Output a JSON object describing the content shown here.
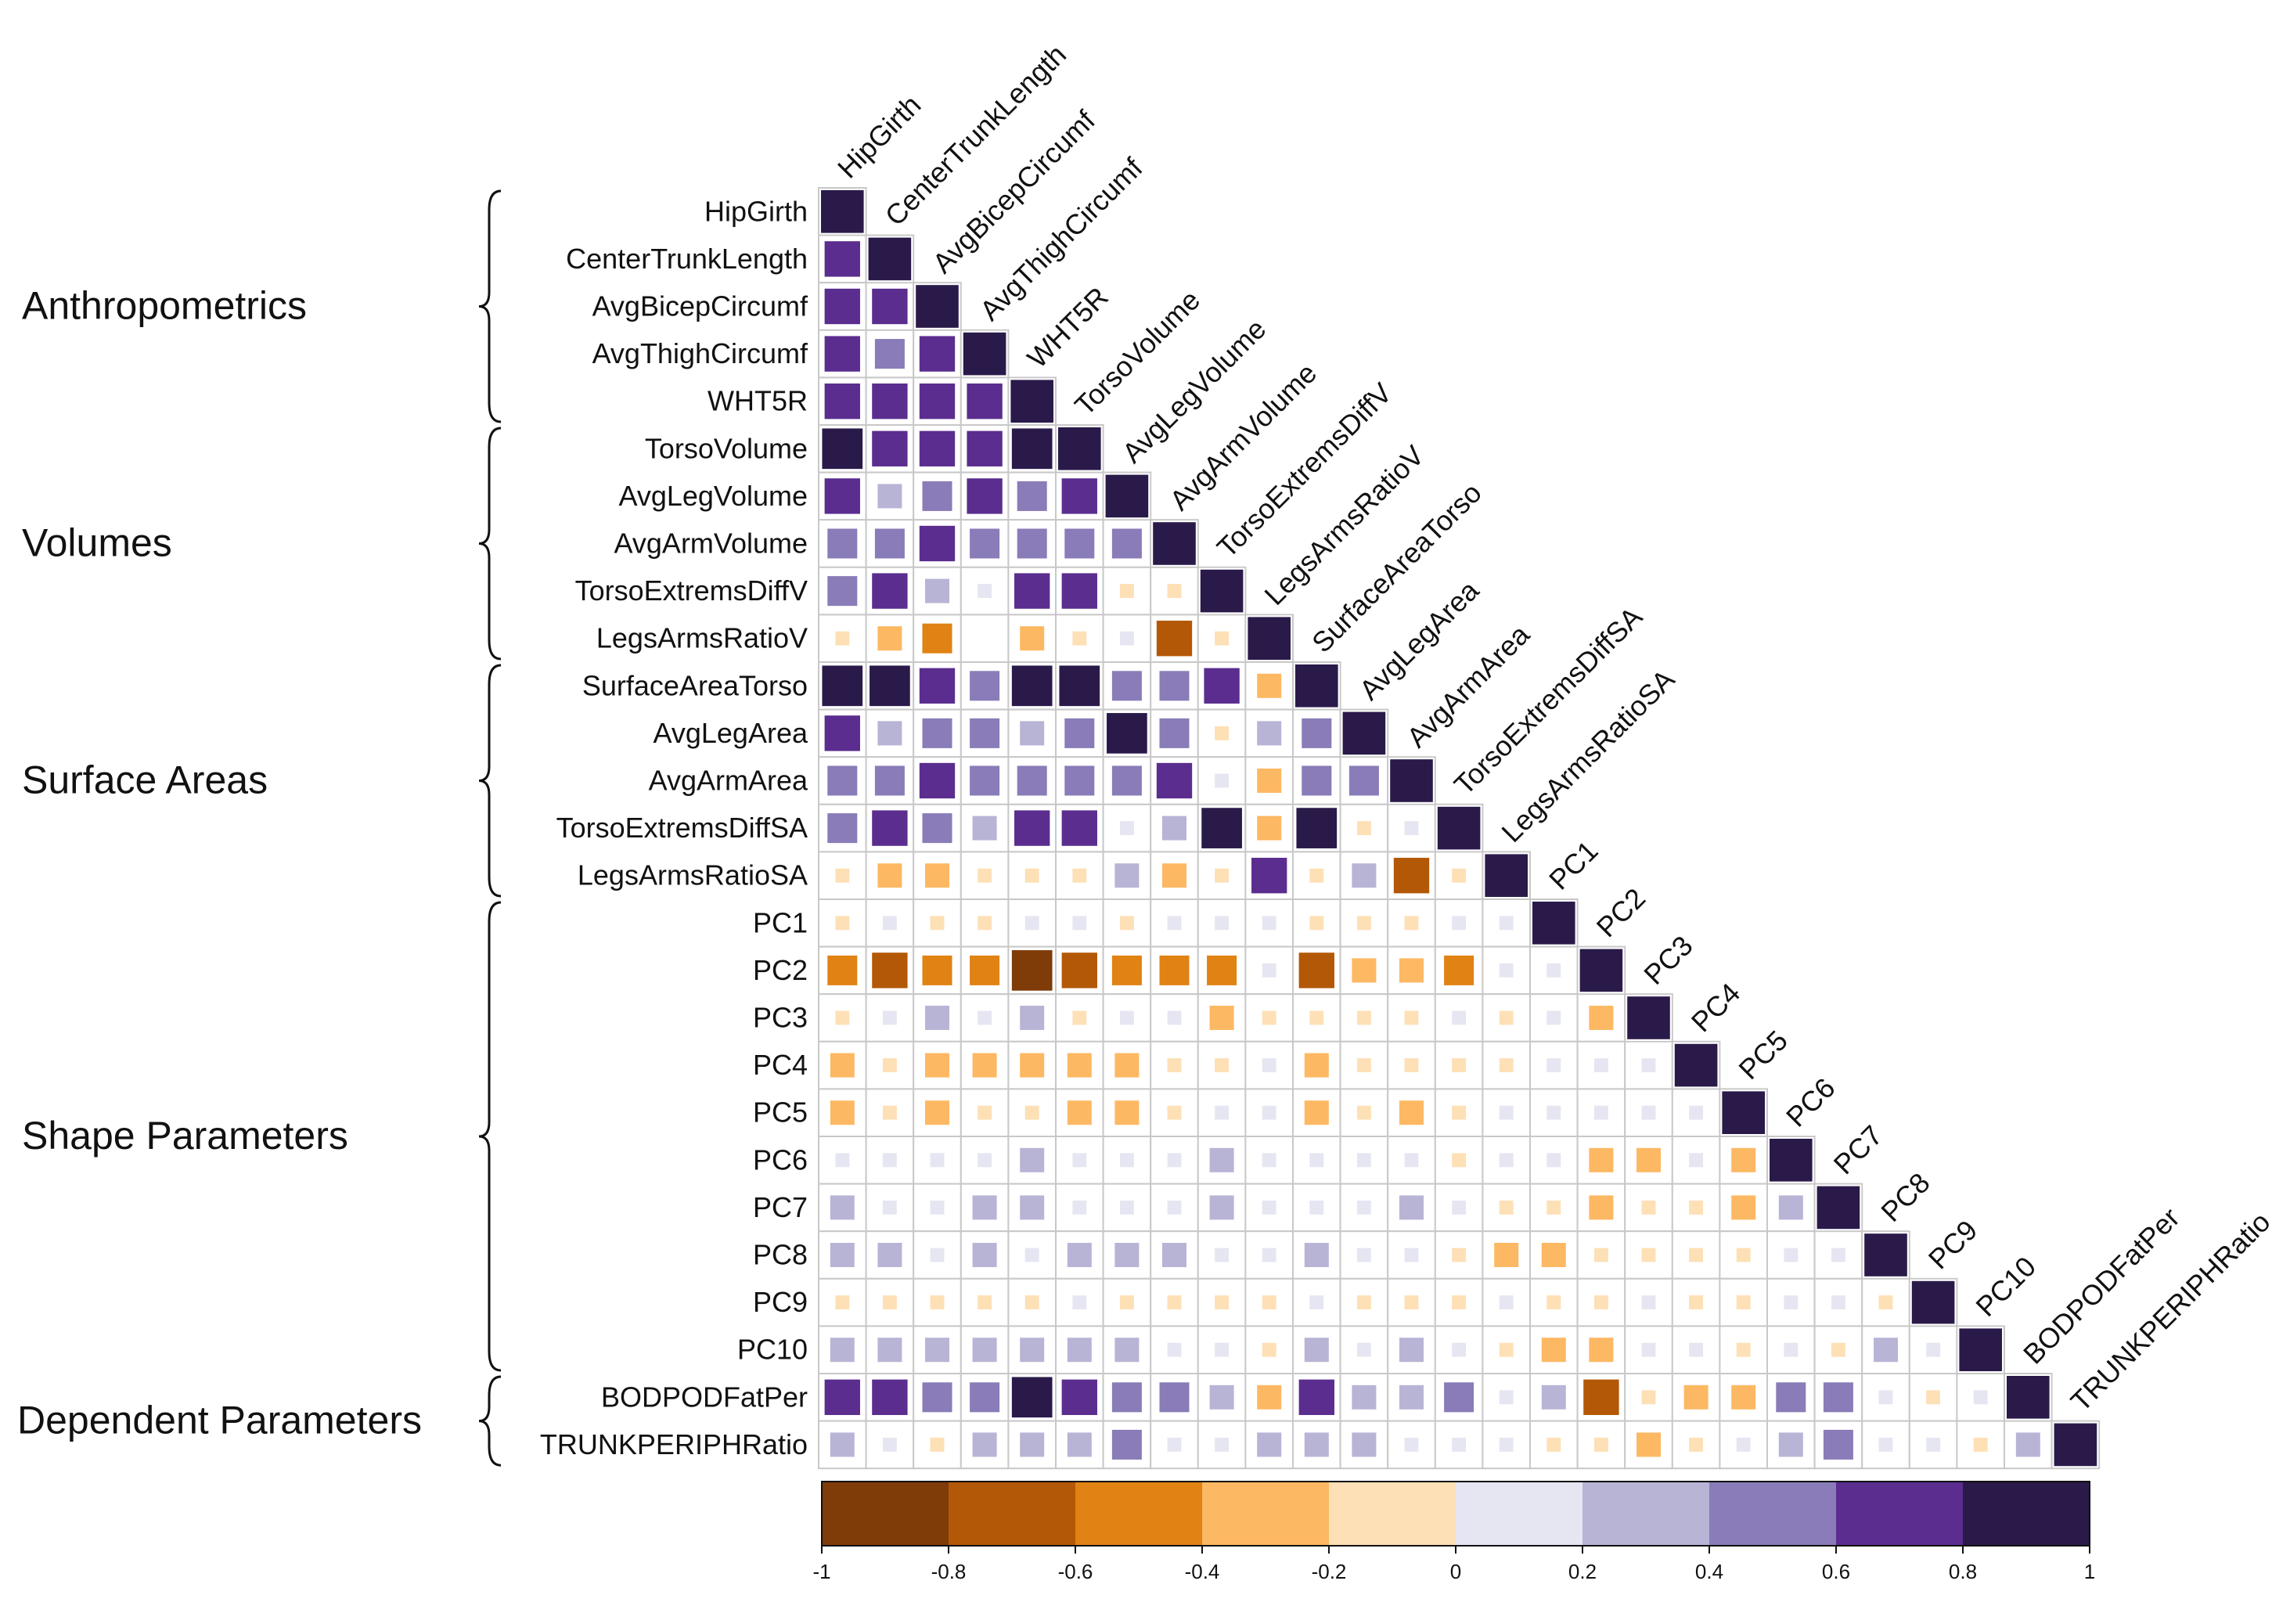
{
  "chart_data": {
    "type": "heatmap",
    "subtype": "lower-triangle correlation matrix",
    "variables": [
      "HipGirth",
      "CenterTrunkLength",
      "AvgBicepCircumf",
      "AvgThighCircumf",
      "WHT5R",
      "TorsoVolume",
      "AvgLegVolume",
      "AvgArmVolume",
      "TorsoExtremsDiffV",
      "LegsArmsRatioV",
      "SurfaceAreaTorso",
      "AvgLegArea",
      "AvgArmArea",
      "TorsoExtremsDiffSA",
      "LegsArmsRatioSA",
      "PC1",
      "PC2",
      "PC3",
      "PC4",
      "PC5",
      "PC6",
      "PC7",
      "PC8",
      "PC9",
      "PC10",
      "BODPODFatPer",
      "TRUNKPERIPHRatio"
    ],
    "groups": [
      {
        "label": "Anthropometrics",
        "from": 0,
        "to": 4
      },
      {
        "label": "Volumes",
        "from": 5,
        "to": 9
      },
      {
        "label": "Surface Areas",
        "from": 10,
        "to": 14
      },
      {
        "label": "Shape Parameters",
        "from": 15,
        "to": 24
      },
      {
        "label": "Dependent Parameters",
        "from": 25,
        "to": 26
      }
    ],
    "lower_triangle_values": [
      [
        1
      ],
      [
        0.7,
        1
      ],
      [
        0.7,
        0.7,
        1
      ],
      [
        0.7,
        0.5,
        0.7,
        1
      ],
      [
        0.7,
        0.7,
        0.7,
        0.7,
        1
      ],
      [
        0.9,
        0.7,
        0.7,
        0.7,
        0.9,
        1
      ],
      [
        0.7,
        0.3,
        0.5,
        0.7,
        0.5,
        0.7,
        1
      ],
      [
        0.5,
        0.5,
        0.7,
        0.5,
        0.5,
        0.5,
        0.5,
        1
      ],
      [
        0.5,
        0.7,
        0.3,
        0.1,
        0.7,
        0.7,
        -0.1,
        -0.1,
        1
      ],
      [
        -0.1,
        -0.3,
        -0.5,
        0,
        -0.3,
        -0.1,
        0.1,
        -0.7,
        -0.1,
        1
      ],
      [
        0.9,
        0.9,
        0.7,
        0.5,
        0.9,
        0.9,
        0.5,
        0.5,
        0.7,
        -0.3,
        1
      ],
      [
        0.7,
        0.3,
        0.5,
        0.5,
        0.3,
        0.5,
        0.9,
        0.5,
        -0.1,
        0.3,
        0.5,
        1
      ],
      [
        0.5,
        0.5,
        0.7,
        0.5,
        0.5,
        0.5,
        0.5,
        0.7,
        0.1,
        -0.3,
        0.5,
        0.5,
        1
      ],
      [
        0.5,
        0.7,
        0.5,
        0.3,
        0.7,
        0.7,
        0.1,
        0.3,
        0.9,
        -0.3,
        0.9,
        -0.1,
        0.1,
        1
      ],
      [
        -0.1,
        -0.3,
        -0.3,
        -0.1,
        -0.1,
        -0.1,
        0.3,
        -0.3,
        -0.1,
        0.7,
        -0.1,
        0.3,
        -0.7,
        -0.1,
        1
      ],
      [
        -0.1,
        0.1,
        -0.1,
        -0.1,
        0.1,
        0.1,
        -0.1,
        0.1,
        0.1,
        0.1,
        -0.1,
        -0.1,
        -0.1,
        0.1,
        0.1,
        1
      ],
      [
        -0.5,
        -0.7,
        -0.5,
        -0.5,
        -0.9,
        -0.7,
        -0.5,
        -0.5,
        -0.5,
        0.1,
        -0.7,
        -0.3,
        -0.3,
        -0.5,
        0.1,
        0.1,
        1
      ],
      [
        -0.1,
        0.1,
        0.3,
        0.1,
        0.3,
        -0.1,
        0.1,
        0.1,
        -0.3,
        -0.1,
        -0.1,
        -0.1,
        -0.1,
        0.1,
        -0.1,
        0.1,
        -0.3,
        1
      ],
      [
        -0.3,
        -0.1,
        -0.3,
        -0.3,
        -0.3,
        -0.3,
        -0.3,
        -0.1,
        -0.1,
        0.1,
        -0.3,
        -0.1,
        -0.1,
        -0.1,
        -0.1,
        0.1,
        0.1,
        0.1,
        1
      ],
      [
        -0.3,
        -0.1,
        -0.3,
        -0.1,
        -0.1,
        -0.3,
        -0.3,
        -0.1,
        0.1,
        0.1,
        -0.3,
        -0.1,
        -0.3,
        -0.1,
        0.1,
        0.1,
        0.1,
        0.1,
        0.1,
        1
      ],
      [
        0.1,
        0.1,
        0.1,
        0.1,
        0.3,
        0.1,
        0.1,
        0.1,
        0.3,
        0.1,
        0.1,
        0.1,
        0.1,
        -0.1,
        0.1,
        0.1,
        -0.3,
        -0.3,
        0.1,
        -0.3,
        1
      ],
      [
        0.3,
        0.1,
        0.1,
        0.3,
        0.3,
        0.1,
        0.1,
        0.1,
        0.3,
        0.1,
        0.1,
        0.1,
        0.3,
        0.1,
        -0.1,
        -0.1,
        -0.3,
        -0.1,
        -0.1,
        -0.3,
        0.3,
        1
      ],
      [
        0.3,
        0.3,
        0.1,
        0.3,
        0.1,
        0.3,
        0.3,
        0.3,
        0.1,
        0.1,
        0.3,
        0.1,
        0.1,
        -0.1,
        -0.3,
        -0.3,
        -0.1,
        -0.1,
        -0.1,
        -0.1,
        0.1,
        0.1,
        1
      ],
      [
        -0.1,
        -0.1,
        -0.1,
        -0.1,
        -0.1,
        0.1,
        -0.1,
        -0.1,
        -0.1,
        -0.1,
        0.1,
        -0.1,
        -0.1,
        -0.1,
        0.1,
        -0.1,
        -0.1,
        0.1,
        -0.1,
        -0.1,
        0.1,
        0.1,
        -0.1,
        1
      ],
      [
        0.3,
        0.3,
        0.3,
        0.3,
        0.3,
        0.3,
        0.3,
        0.1,
        0.1,
        -0.1,
        0.3,
        0.1,
        0.3,
        0.1,
        -0.1,
        -0.3,
        -0.3,
        0.1,
        0.1,
        -0.1,
        0.1,
        -0.1,
        0.3,
        0.1,
        1
      ],
      [
        0.7,
        0.7,
        0.5,
        0.5,
        0.9,
        0.7,
        0.5,
        0.5,
        0.3,
        -0.3,
        0.7,
        0.3,
        0.3,
        0.5,
        0.1,
        0.3,
        -0.7,
        -0.1,
        -0.3,
        -0.3,
        0.5,
        0.5,
        0.1,
        -0.1,
        0.1,
        1
      ],
      [
        0.3,
        0.1,
        -0.1,
        0.3,
        0.3,
        0.3,
        0.5,
        0.1,
        0.1,
        0.3,
        0.3,
        0.3,
        0.1,
        0.1,
        0.1,
        -0.1,
        -0.1,
        -0.3,
        -0.1,
        0.1,
        0.3,
        0.5,
        0.1,
        0.1,
        -0.1,
        0.3,
        1
      ]
    ],
    "colorbar": {
      "range": [
        -1,
        1
      ],
      "ticks": [
        "-1",
        "-0.8",
        "-0.6",
        "-0.4",
        "-0.2",
        "0",
        "0.2",
        "0.4",
        "0.6",
        "0.8",
        "1"
      ],
      "colors": [
        "#7f3b08",
        "#b35806",
        "#e08214",
        "#fdb863",
        "#fee0b6",
        "#e6e6f2",
        "#b8b4d6",
        "#8a7cb8",
        "#5a2d8f",
        "#2a1a4a"
      ]
    },
    "legend": "bottom"
  }
}
